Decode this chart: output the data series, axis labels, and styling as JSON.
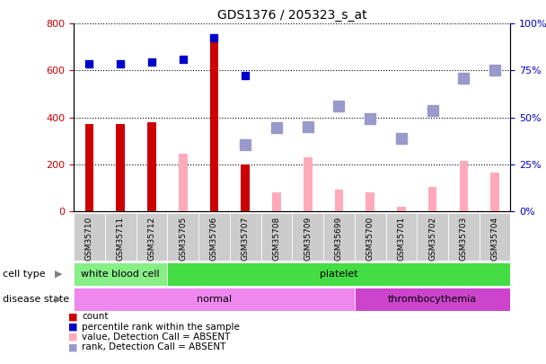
{
  "title": "GDS1376 / 205323_s_at",
  "samples": [
    "GSM35710",
    "GSM35711",
    "GSM35712",
    "GSM35705",
    "GSM35706",
    "GSM35707",
    "GSM35708",
    "GSM35709",
    "GSM35699",
    "GSM35700",
    "GSM35701",
    "GSM35702",
    "GSM35703",
    "GSM35704"
  ],
  "count_values": [
    370,
    370,
    378,
    null,
    750,
    200,
    null,
    null,
    null,
    null,
    null,
    null,
    null,
    null
  ],
  "count_color": "#cc0000",
  "value_absent": [
    null,
    null,
    null,
    245,
    null,
    null,
    80,
    230,
    90,
    80,
    20,
    105,
    215,
    165
  ],
  "value_absent_color": "#ffaabb",
  "rank_present": [
    630,
    630,
    638,
    648,
    740,
    580,
    null,
    null,
    null,
    null,
    null,
    null,
    null,
    null
  ],
  "rank_present_color": "#0000cc",
  "rank_absent": [
    null,
    null,
    null,
    null,
    null,
    285,
    358,
    360,
    450,
    395,
    310,
    430,
    568,
    600
  ],
  "rank_absent_color": "#9999cc",
  "ylim_left": [
    0,
    800
  ],
  "ylim_right": [
    0,
    100
  ],
  "yticks_left": [
    0,
    200,
    400,
    600,
    800
  ],
  "yticks_right": [
    0,
    25,
    50,
    75,
    100
  ],
  "cell_type_groups": [
    {
      "label": "white blood cell",
      "start": 0,
      "end": 3,
      "color": "#88ee88"
    },
    {
      "label": "platelet",
      "start": 3,
      "end": 14,
      "color": "#44dd44"
    }
  ],
  "disease_state_groups": [
    {
      "label": "normal",
      "start": 0,
      "end": 9,
      "color": "#ee88ee"
    },
    {
      "label": "thrombocythemia",
      "start": 9,
      "end": 14,
      "color": "#cc44cc"
    }
  ],
  "legend_items": [
    {
      "label": "count",
      "color": "#cc0000"
    },
    {
      "label": "percentile rank within the sample",
      "color": "#0000cc"
    },
    {
      "label": "value, Detection Call = ABSENT",
      "color": "#ffaabb"
    },
    {
      "label": "rank, Detection Call = ABSENT",
      "color": "#9999cc"
    }
  ],
  "bar_width": 0.28,
  "marker_size": 6,
  "dotted_line_color": "#000000",
  "background_color": "#ffffff",
  "plot_bg_color": "#ffffff",
  "cell_type_label": "cell type",
  "disease_state_label": "disease state",
  "xtick_bg_color": "#cccccc",
  "n_samples": 14
}
